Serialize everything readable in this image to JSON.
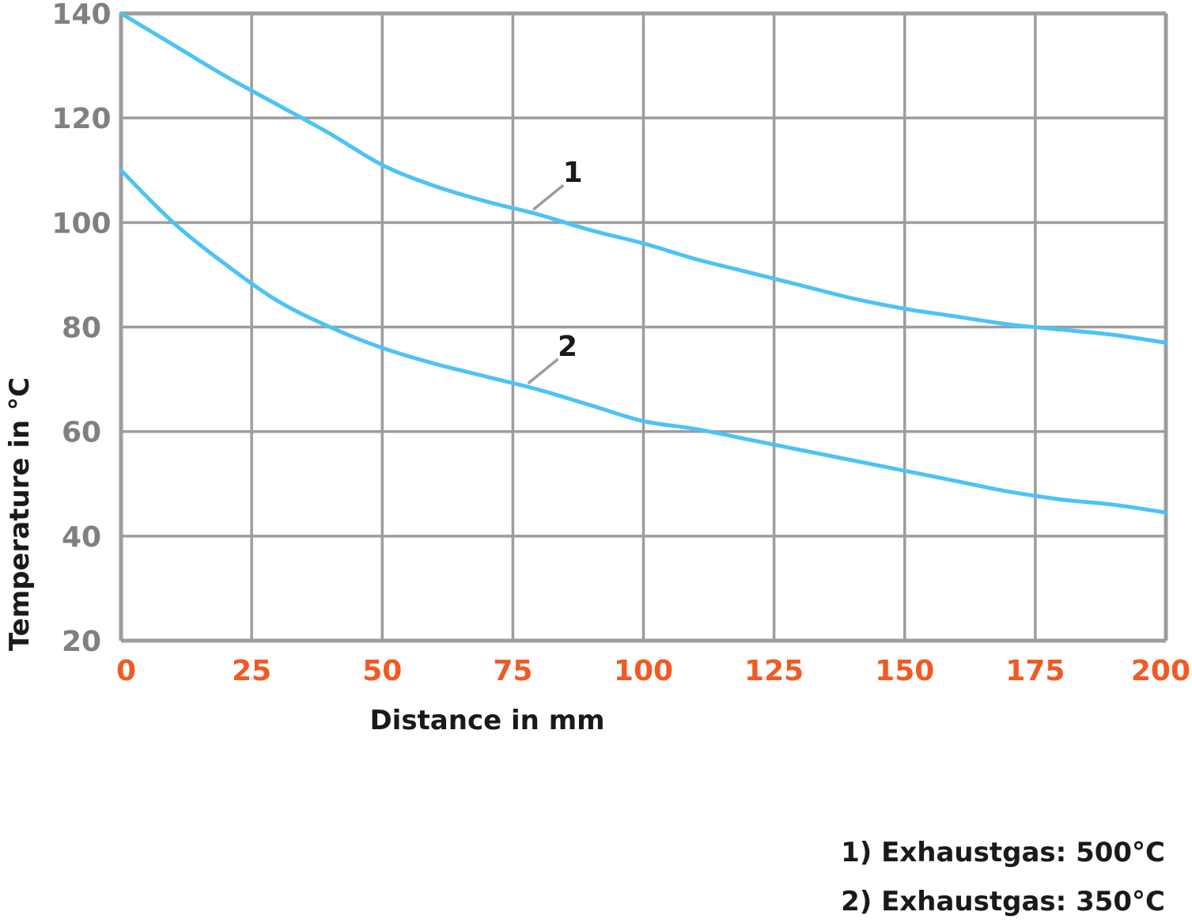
{
  "chart_data": {
    "type": "line",
    "xlabel": "Distance in mm",
    "ylabel": "Temperature in °C",
    "xlim": [
      0,
      200
    ],
    "ylim": [
      20,
      140
    ],
    "x_ticks": [
      "0",
      "25",
      "50",
      "75",
      "100",
      "125",
      "150",
      "175",
      "200"
    ],
    "y_ticks": [
      "20",
      "40",
      "60",
      "80",
      "100",
      "120",
      "140"
    ],
    "grid": true,
    "colors": {
      "line": "#4dc3f5",
      "grid": "#9d9d9d",
      "y_tick_text": "#808080",
      "x_tick_text": "#f15a24",
      "leader": "#9d9d9d"
    },
    "series": [
      {
        "label": "1",
        "x": [
          0,
          10,
          20,
          30,
          40,
          50,
          60,
          70,
          80,
          90,
          100,
          110,
          120,
          130,
          140,
          150,
          160,
          170,
          180,
          190,
          200
        ],
        "y": [
          140,
          134,
          128,
          122.5,
          117,
          111,
          107,
          104,
          101.5,
          98.5,
          96,
          93,
          90.5,
          88,
          85.5,
          83.5,
          82,
          80.5,
          79.5,
          78.5,
          77
        ]
      },
      {
        "label": "2",
        "x": [
          0,
          10,
          20,
          30,
          40,
          50,
          60,
          70,
          80,
          90,
          100,
          110,
          120,
          130,
          140,
          150,
          160,
          170,
          180,
          190,
          200
        ],
        "y": [
          110,
          100,
          92,
          85,
          80,
          76,
          73,
          70.5,
          68,
          65,
          62,
          60.5,
          58.5,
          56.5,
          54.5,
          52.5,
          50.5,
          48.5,
          47,
          46,
          44.5
        ]
      }
    ]
  },
  "notes": {
    "line1": "1) Exhaustgas: 500°C",
    "line2": "2) Exhaustgas: 350°C"
  }
}
